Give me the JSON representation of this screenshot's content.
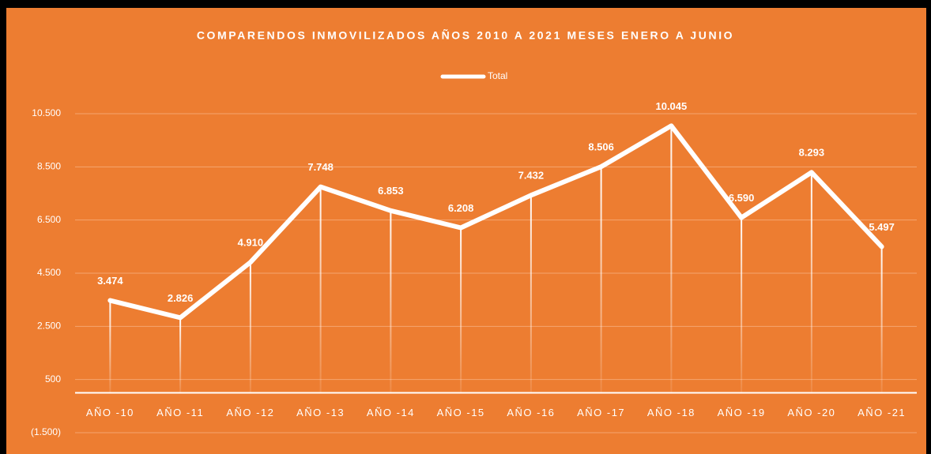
{
  "chart_data": {
    "type": "line",
    "title": "COMPARENDOS INMOVILIZADOS AÑOS 2010 A 2021 MESES ENERO A JUNIO",
    "categories": [
      "AÑO -10",
      "AÑO -11",
      "AÑO -12",
      "AÑO -13",
      "AÑO -14",
      "AÑO -15",
      "AÑO -16",
      "AÑO -17",
      "AÑO -18",
      "AÑO -19",
      "AÑO -20",
      "AÑO -21"
    ],
    "series": [
      {
        "name": "Total",
        "color": "#ffffff",
        "values": [
          3474,
          2826,
          4910,
          7748,
          6853,
          6208,
          7432,
          8506,
          10045,
          6590,
          8293,
          5497
        ],
        "value_labels": [
          "3.474",
          "2.826",
          "4.910",
          "7.748",
          "6.853",
          "6.208",
          "7.432",
          "8.506",
          "10.045",
          "6.590",
          "8.293",
          "5.497"
        ]
      }
    ],
    "ylim": [
      -1500,
      10500
    ],
    "yticks": [
      {
        "value": -1500,
        "label": "(1.500)"
      },
      {
        "value": 500,
        "label": "500"
      },
      {
        "value": 2500,
        "label": "2.500"
      },
      {
        "value": 4500,
        "label": "4.500"
      },
      {
        "value": 6500,
        "label": "6.500"
      },
      {
        "value": 8500,
        "label": "8.500"
      },
      {
        "value": 10500,
        "label": "10.500"
      }
    ],
    "grid": true,
    "legend": "top",
    "background": "#ed7d31"
  }
}
